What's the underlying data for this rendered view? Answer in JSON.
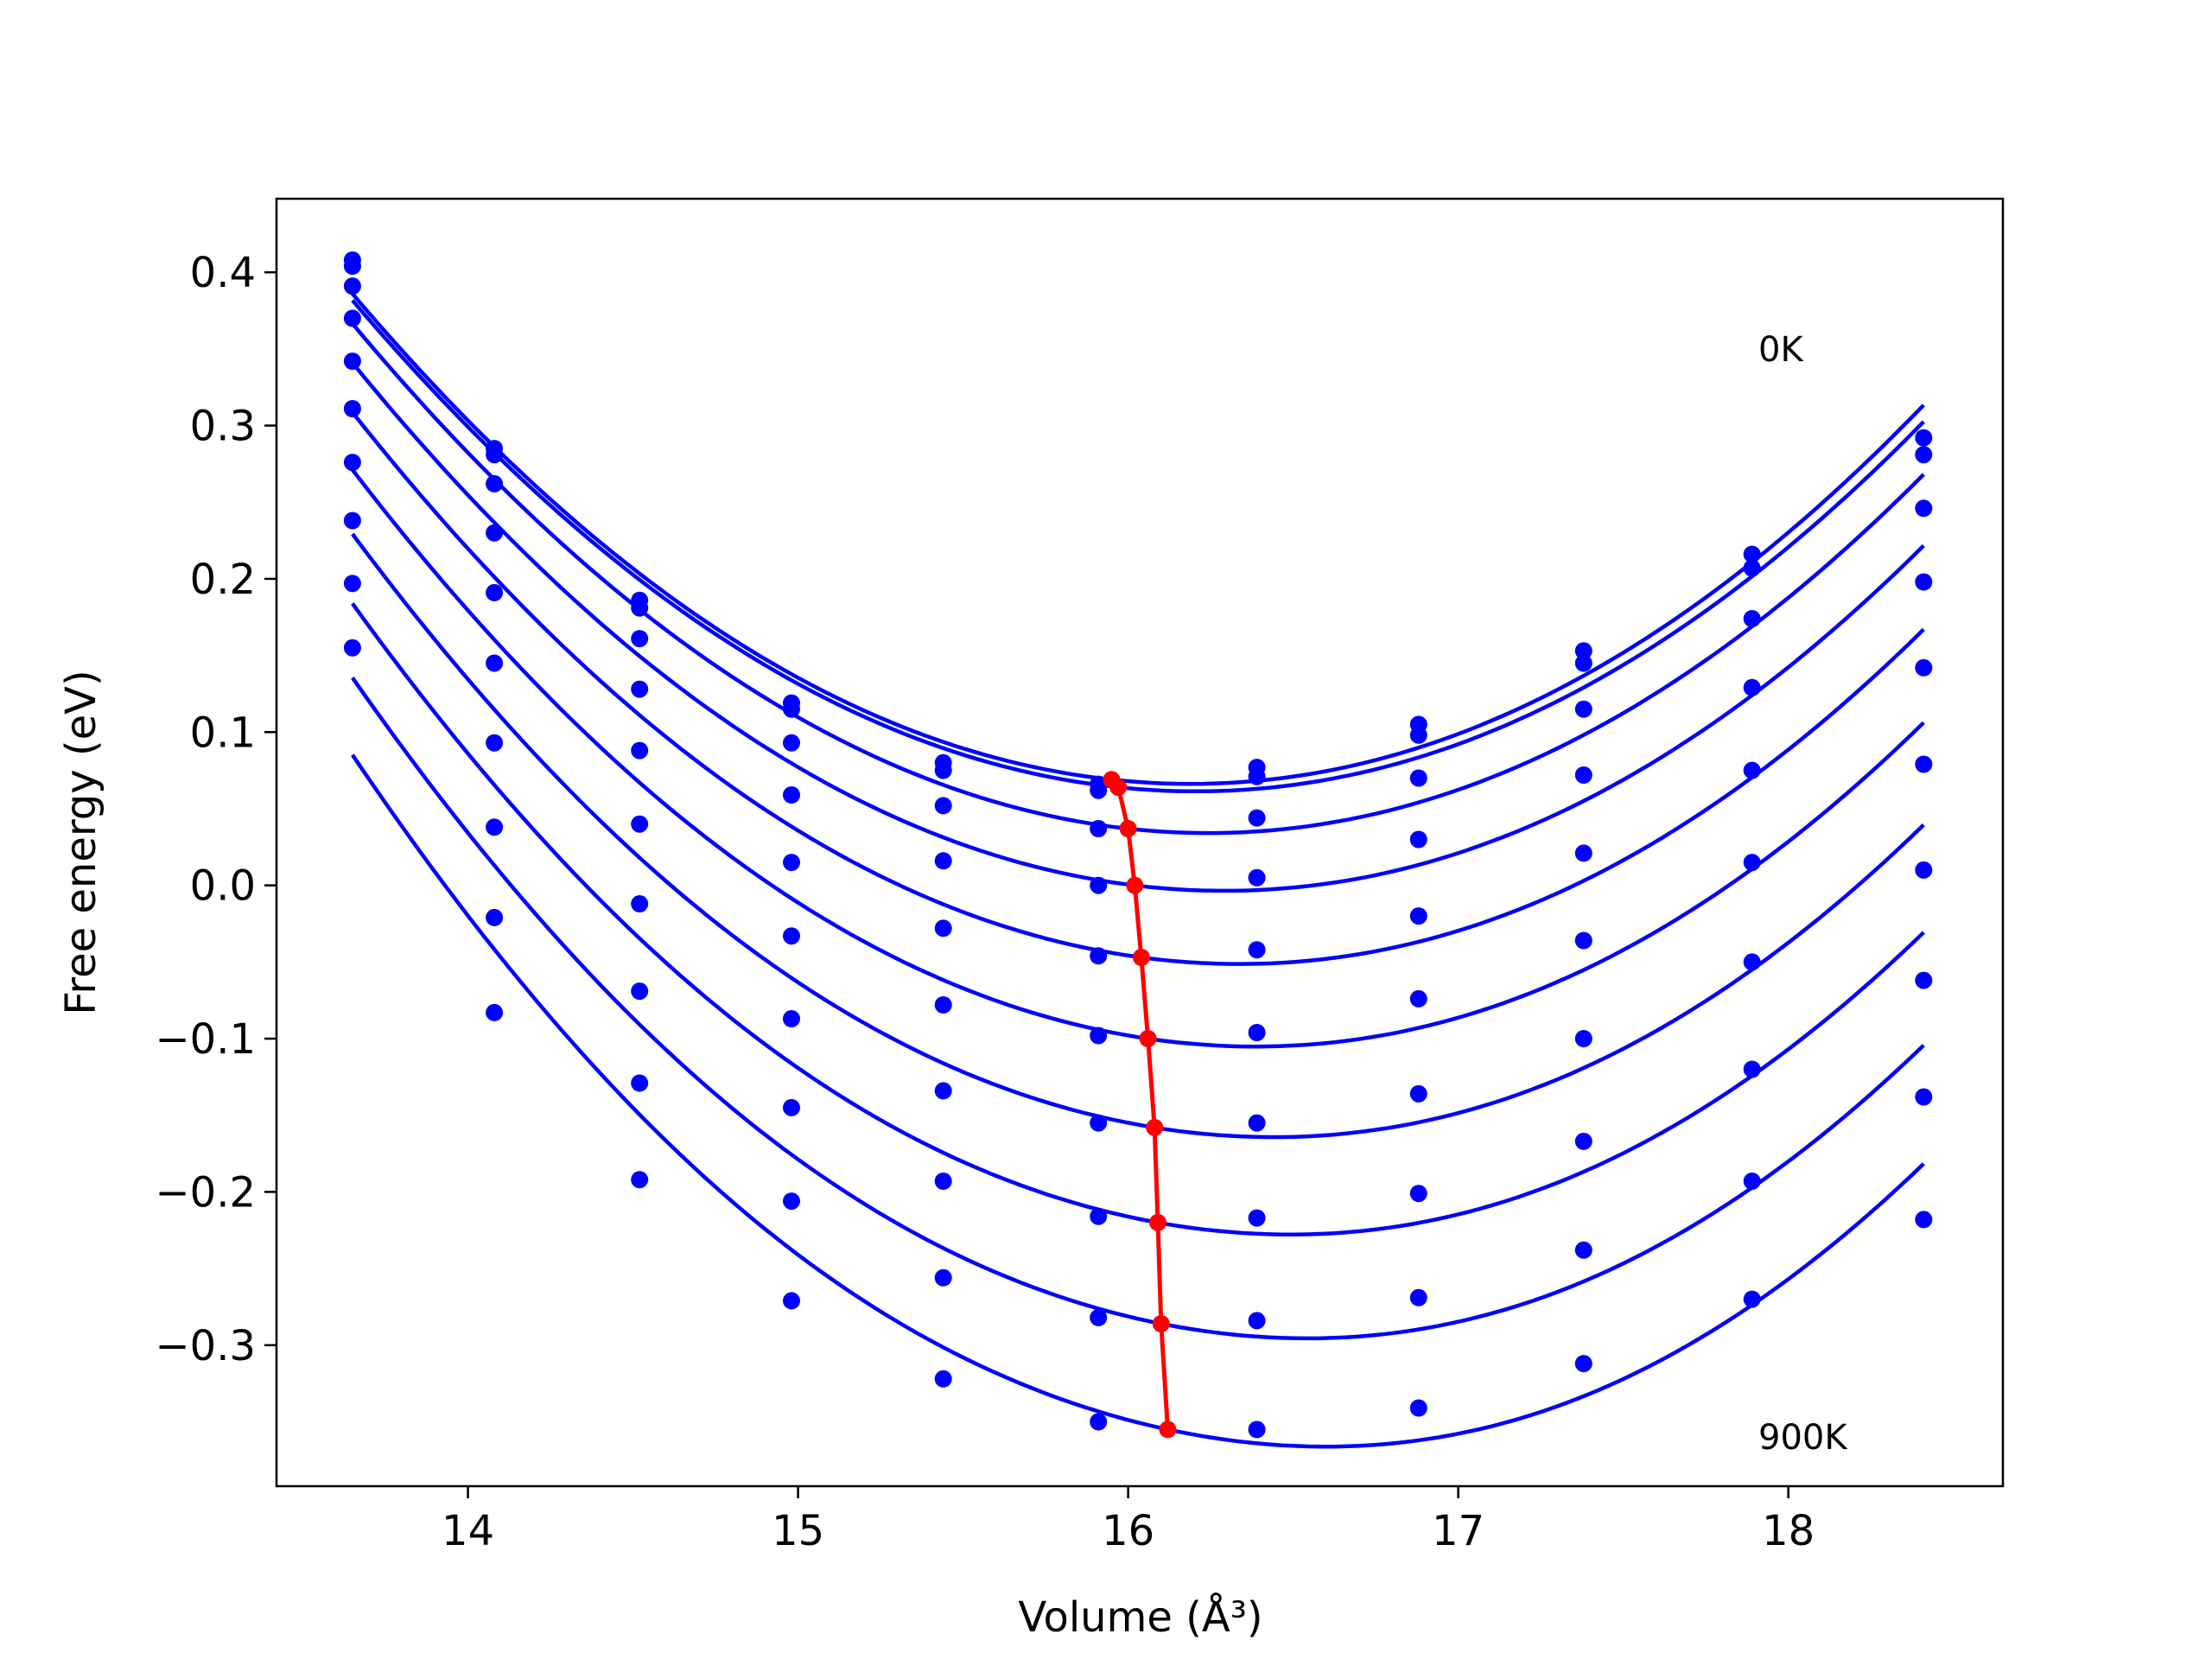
{
  "chart_data": {
    "type": "scatter",
    "title": "",
    "xlabel": "Volume (Å³)",
    "ylabel": "Free energy (eV)",
    "xlim": [
      13.42,
      18.65
    ],
    "ylim": [
      -0.392,
      0.448
    ],
    "xticks": [
      14,
      15,
      16,
      17,
      18
    ],
    "yticks": [
      -0.3,
      -0.2,
      -0.1,
      0.0,
      0.1,
      0.2,
      0.3,
      0.4
    ],
    "xtick_labels": [
      "14",
      "15",
      "16",
      "17",
      "18"
    ],
    "ytick_labels": [
      "−0.3",
      "−0.2",
      "−0.1",
      "0.0",
      "0.1",
      "0.2",
      "0.3",
      "0.4"
    ],
    "grid": false,
    "legend": "none",
    "annotations": [
      {
        "text": "0K",
        "x": 17.9,
        "y": 0.345
      },
      {
        "text": "900K",
        "x": 17.9,
        "y": -0.37
      }
    ],
    "colors": {
      "curves": "#0000ff",
      "minima": "#ff0000"
    },
    "x": [
      13.65,
      14.08,
      14.52,
      14.98,
      15.44,
      15.91,
      16.39,
      16.88,
      17.38,
      17.89,
      18.41
    ],
    "series": [
      {
        "values": [
          0.408,
          0.285,
          0.186,
          0.119,
          0.08,
          0.066,
          0.077,
          0.105,
          0.153,
          0.216,
          0.292
        ],
        "fit_min": [
          15.95,
          0.069
        ]
      },
      {
        "values": [
          0.404,
          0.281,
          0.181,
          0.115,
          0.075,
          0.062,
          0.071,
          0.098,
          0.145,
          0.207,
          0.281
        ],
        "fit_min": [
          15.97,
          0.064
        ]
      },
      {
        "values": [
          0.391,
          0.262,
          0.161,
          0.093,
          0.052,
          0.037,
          0.044,
          0.07,
          0.115,
          0.174,
          0.246
        ],
        "fit_min": [
          16.0,
          0.037
        ]
      },
      {
        "values": [
          0.37,
          0.23,
          0.128,
          0.059,
          0.016,
          0.0,
          0.005,
          0.03,
          0.072,
          0.129,
          0.198
        ],
        "fit_min": [
          16.02,
          0.0
        ]
      },
      {
        "values": [
          0.342,
          0.191,
          0.088,
          0.015,
          -0.028,
          -0.046,
          -0.042,
          -0.02,
          0.021,
          0.075,
          0.142
        ],
        "fit_min": [
          16.04,
          -0.047
        ]
      },
      {
        "values": [
          0.311,
          0.145,
          0.04,
          -0.033,
          -0.078,
          -0.098,
          -0.096,
          -0.074,
          -0.036,
          0.015,
          0.079
        ],
        "fit_min": [
          16.06,
          -0.1
        ]
      },
      {
        "values": [
          0.276,
          0.093,
          -0.012,
          -0.087,
          -0.134,
          -0.155,
          -0.155,
          -0.136,
          -0.1,
          -0.05,
          0.01
        ],
        "fit_min": [
          16.08,
          -0.158
        ]
      },
      {
        "values": [
          0.238,
          0.038,
          -0.069,
          -0.145,
          -0.193,
          -0.216,
          -0.217,
          -0.201,
          -0.167,
          -0.12,
          -0.062
        ],
        "fit_min": [
          16.09,
          -0.22
        ]
      },
      {
        "values": [
          0.197,
          -0.021,
          -0.129,
          -0.206,
          -0.256,
          -0.282,
          -0.284,
          -0.269,
          -0.238,
          -0.193,
          -0.138
        ],
        "fit_min": [
          16.1,
          -0.286
        ]
      },
      {
        "values": [
          0.155,
          -0.083,
          -0.192,
          -0.271,
          -0.322,
          -0.35,
          -0.355,
          -0.341,
          -0.312,
          -0.27,
          -0.218
        ],
        "fit_min": [
          16.12,
          -0.355
        ]
      }
    ]
  }
}
